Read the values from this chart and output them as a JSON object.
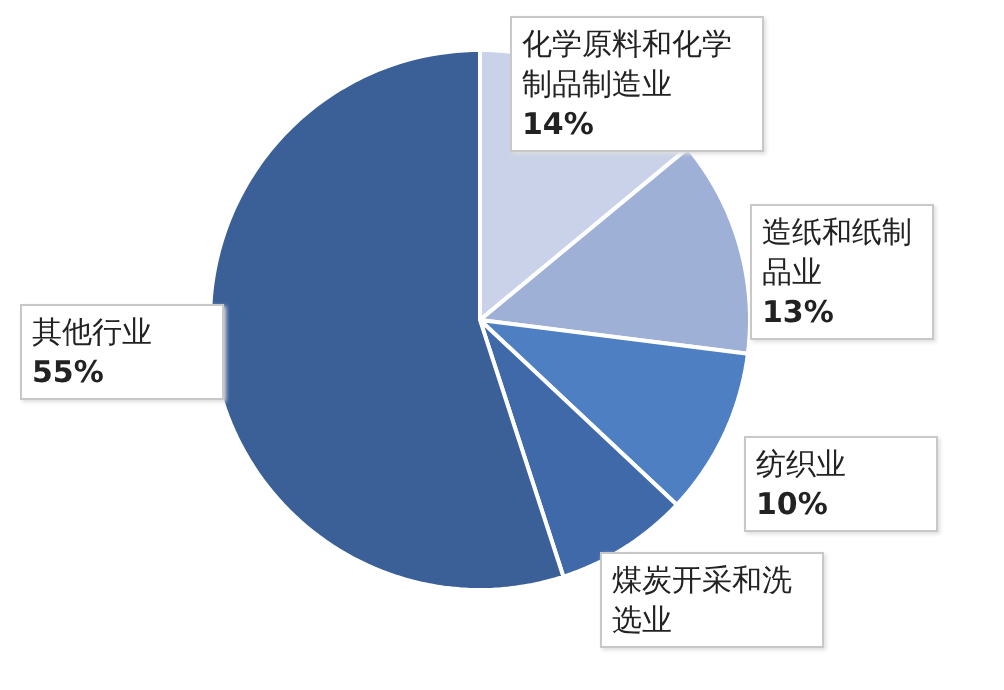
{
  "chart_data": {
    "type": "pie",
    "categories": [
      "化学原料和化学制品制造业",
      "造纸和纸制品业",
      "纺织业",
      "煤炭开采和洗选业",
      "其他行业"
    ],
    "values": [
      14,
      13,
      10,
      8,
      55
    ],
    "colors": [
      "#c9d2e8",
      "#9fb0d6",
      "#4d7fc2",
      "#3f69a8",
      "#3b5f97"
    ],
    "value_labels": [
      "14%",
      "13%",
      "10%",
      null,
      "55%"
    ]
  }
}
